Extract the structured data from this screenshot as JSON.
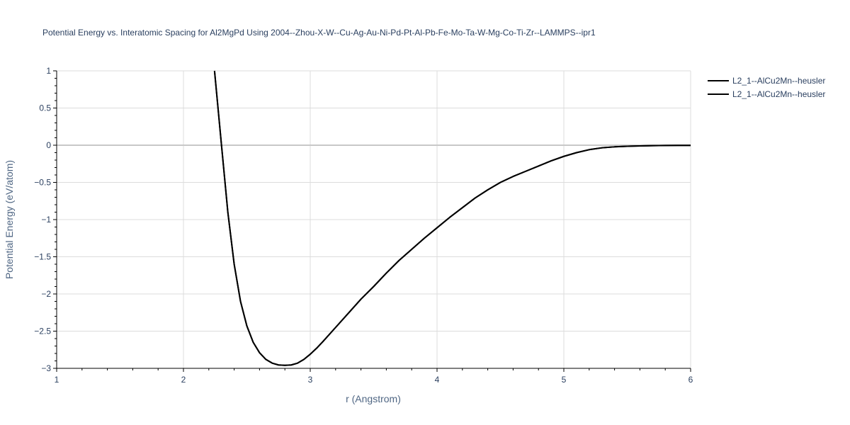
{
  "chart_data": {
    "type": "line",
    "title": "Potential Energy vs. Interatomic Spacing for Al2MgPd Using 2004--Zhou-X-W--Cu-Ag-Au-Ni-Pd-Pt-Al-Pb-Fe-Mo-Ta-W-Mg-Co-Ti-Zr--LAMMPS--ipr1",
    "xlabel": "r (Angstrom)",
    "ylabel": "Potential Energy (eV/atom)",
    "xlim": [
      1,
      6
    ],
    "ylim": [
      -3,
      1
    ],
    "x_ticks": [
      1,
      2,
      3,
      4,
      5,
      6
    ],
    "x_tick_labels": [
      "1",
      "2",
      "3",
      "4",
      "5",
      "6"
    ],
    "y_ticks": [
      1,
      0.5,
      0,
      -0.5,
      -1,
      -1.5,
      -2,
      -2.5,
      -3
    ],
    "y_tick_labels": [
      "1",
      "0.5",
      "0",
      "−0.5",
      "−1",
      "−1.5",
      "−2",
      "−2.5",
      "−3"
    ],
    "grid": true,
    "legend_position": "top-right",
    "series": [
      {
        "name": "L2_1--AlCu2Mn--heusler",
        "color": "#000000",
        "x": [
          2.245,
          2.3,
          2.35,
          2.4,
          2.45,
          2.5,
          2.55,
          2.6,
          2.65,
          2.7,
          2.75,
          2.8,
          2.85,
          2.9,
          2.95,
          3.0,
          3.05,
          3.1,
          3.2,
          3.3,
          3.4,
          3.5,
          3.6,
          3.7,
          3.8,
          3.9,
          4.0,
          4.1,
          4.2,
          4.3,
          4.4,
          4.5,
          4.6,
          4.7,
          4.8,
          4.9,
          5.0,
          5.1,
          5.2,
          5.3,
          5.4,
          5.5,
          5.6,
          5.7,
          5.8,
          5.9,
          6.0
        ],
        "y": [
          1.0,
          0.0,
          -0.9,
          -1.6,
          -2.1,
          -2.43,
          -2.65,
          -2.79,
          -2.88,
          -2.93,
          -2.955,
          -2.96,
          -2.955,
          -2.93,
          -2.88,
          -2.81,
          -2.73,
          -2.64,
          -2.45,
          -2.26,
          -2.07,
          -1.9,
          -1.72,
          -1.55,
          -1.4,
          -1.25,
          -1.11,
          -0.97,
          -0.84,
          -0.71,
          -0.6,
          -0.5,
          -0.42,
          -0.35,
          -0.28,
          -0.21,
          -0.15,
          -0.1,
          -0.06,
          -0.035,
          -0.022,
          -0.014,
          -0.009,
          -0.006,
          -0.004,
          -0.003,
          -0.002
        ]
      },
      {
        "name": "L2_1--AlCu2Mn--heusler",
        "color": "#000000",
        "x": [
          2.245,
          2.3,
          2.35,
          2.4,
          2.45,
          2.5,
          2.55,
          2.6,
          2.65,
          2.7,
          2.75,
          2.8,
          2.85,
          2.9,
          2.95,
          3.0,
          3.05,
          3.1,
          3.2,
          3.3,
          3.4,
          3.5,
          3.6,
          3.7,
          3.8,
          3.9,
          4.0,
          4.1,
          4.2,
          4.3,
          4.4,
          4.5,
          4.6,
          4.7,
          4.8,
          4.9,
          5.0,
          5.1,
          5.2,
          5.3,
          5.4,
          5.5,
          5.6,
          5.7,
          5.8,
          5.9,
          6.0
        ],
        "y": [
          1.0,
          0.0,
          -0.9,
          -1.6,
          -2.1,
          -2.43,
          -2.65,
          -2.79,
          -2.88,
          -2.93,
          -2.955,
          -2.96,
          -2.955,
          -2.93,
          -2.88,
          -2.81,
          -2.73,
          -2.64,
          -2.45,
          -2.26,
          -2.07,
          -1.9,
          -1.72,
          -1.55,
          -1.4,
          -1.25,
          -1.11,
          -0.97,
          -0.84,
          -0.71,
          -0.6,
          -0.5,
          -0.42,
          -0.35,
          -0.28,
          -0.21,
          -0.15,
          -0.1,
          -0.06,
          -0.035,
          -0.022,
          -0.014,
          -0.009,
          -0.006,
          -0.004,
          -0.003,
          -0.002
        ]
      }
    ]
  }
}
